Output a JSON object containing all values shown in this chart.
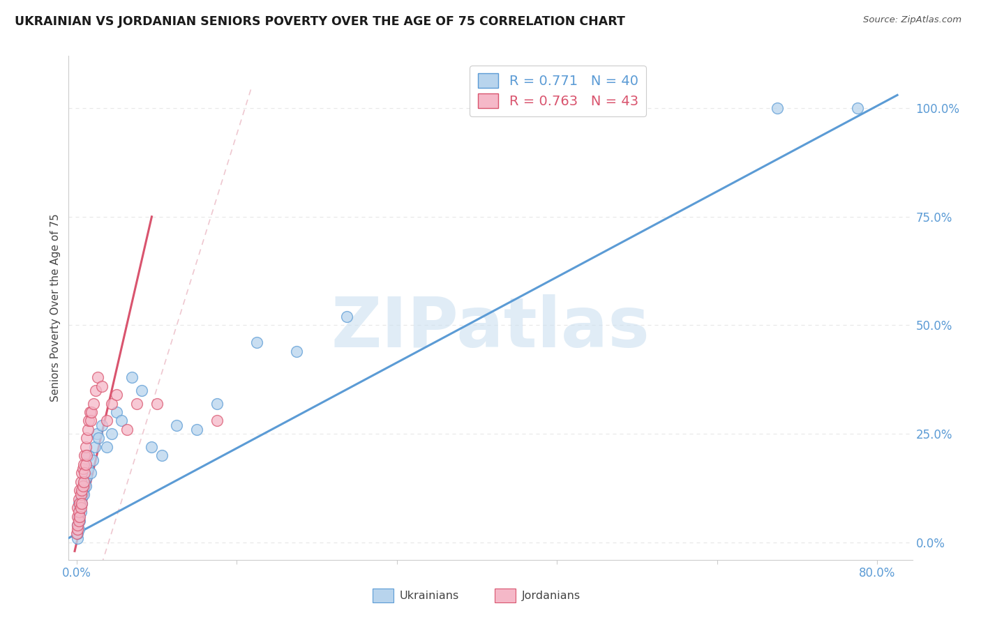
{
  "title": "UKRAINIAN VS JORDANIAN SENIORS POVERTY OVER THE AGE OF 75 CORRELATION CHART",
  "source": "Source: ZipAtlas.com",
  "ylabel": "Seniors Poverty Over the Age of 75",
  "ylabel_right_ticks": [
    0.0,
    0.25,
    0.5,
    0.75,
    1.0
  ],
  "ylabel_right_labels": [
    "0.0%",
    "25.0%",
    "50.0%",
    "75.0%",
    "100.0%"
  ],
  "xlim": [
    -0.008,
    0.835
  ],
  "ylim": [
    -0.04,
    1.12
  ],
  "ukrainian_R": 0.771,
  "ukrainian_N": 40,
  "jordanian_R": 0.763,
  "jordanian_N": 43,
  "ukrainian_color": "#b8d4ed",
  "jordanian_color": "#f5b8c8",
  "ukrainian_line_color": "#5b9bd5",
  "jordanian_line_color": "#d9546e",
  "ref_line_color": "#e0a0b0",
  "watermark": "ZIPatlas",
  "watermark_color": "#cce0f0",
  "background_color": "#ffffff",
  "grid_color": "#e8e8e8",
  "uk_x": [
    0.0005,
    0.001,
    0.001,
    0.002,
    0.002,
    0.002,
    0.003,
    0.003,
    0.004,
    0.004,
    0.005,
    0.006,
    0.007,
    0.008,
    0.009,
    0.01,
    0.011,
    0.012,
    0.014,
    0.016,
    0.018,
    0.02,
    0.022,
    0.025,
    0.03,
    0.035,
    0.04,
    0.045,
    0.055,
    0.065,
    0.075,
    0.085,
    0.1,
    0.12,
    0.14,
    0.18,
    0.22,
    0.27,
    0.7,
    0.78
  ],
  "uk_y": [
    0.01,
    0.02,
    0.04,
    0.03,
    0.06,
    0.09,
    0.05,
    0.08,
    0.07,
    0.1,
    0.09,
    0.12,
    0.11,
    0.14,
    0.13,
    0.15,
    0.17,
    0.2,
    0.16,
    0.19,
    0.22,
    0.25,
    0.24,
    0.27,
    0.22,
    0.25,
    0.3,
    0.28,
    0.38,
    0.35,
    0.22,
    0.2,
    0.27,
    0.26,
    0.32,
    0.46,
    0.44,
    0.52,
    1.0,
    1.0
  ],
  "jo_x": [
    0.0003,
    0.0005,
    0.001,
    0.001,
    0.001,
    0.002,
    0.002,
    0.002,
    0.003,
    0.003,
    0.003,
    0.004,
    0.004,
    0.004,
    0.005,
    0.005,
    0.005,
    0.006,
    0.006,
    0.007,
    0.007,
    0.008,
    0.008,
    0.009,
    0.009,
    0.01,
    0.01,
    0.011,
    0.012,
    0.013,
    0.014,
    0.015,
    0.017,
    0.019,
    0.021,
    0.025,
    0.03,
    0.035,
    0.04,
    0.05,
    0.06,
    0.08,
    0.14
  ],
  "jo_y": [
    0.02,
    0.03,
    0.04,
    0.06,
    0.08,
    0.05,
    0.07,
    0.1,
    0.06,
    0.09,
    0.12,
    0.08,
    0.11,
    0.14,
    0.09,
    0.12,
    0.16,
    0.13,
    0.17,
    0.14,
    0.18,
    0.16,
    0.2,
    0.18,
    0.22,
    0.2,
    0.24,
    0.26,
    0.28,
    0.3,
    0.28,
    0.3,
    0.32,
    0.35,
    0.38,
    0.36,
    0.28,
    0.32,
    0.34,
    0.26,
    0.32,
    0.32,
    0.28
  ]
}
